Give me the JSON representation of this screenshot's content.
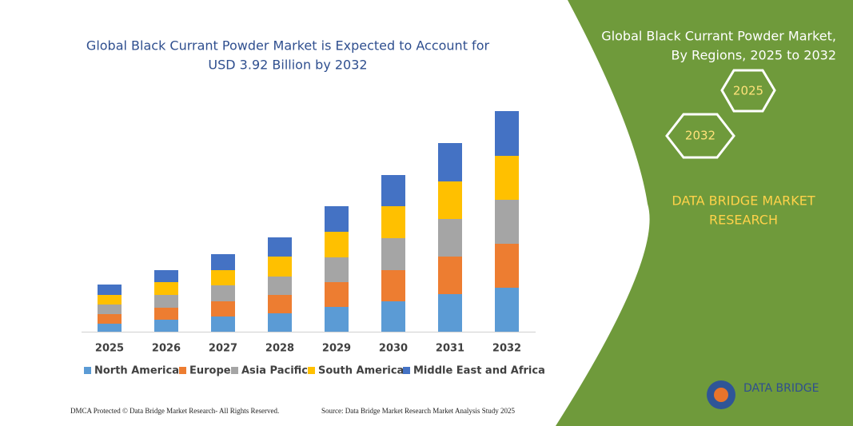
{
  "chart_data": {
    "type": "stacked-bar",
    "title": [
      "Global Black Currant Powder Market is Expected to Account for",
      "USD 3.92 Billion by 2032"
    ],
    "categories": [
      "2025",
      "2026",
      "2027",
      "2028",
      "2029",
      "2030",
      "2031",
      "2032"
    ],
    "series": [
      {
        "name": "North America",
        "color": "#5b9bd5",
        "values": [
          10,
          15,
          19,
          23,
          31,
          38,
          47,
          55
        ]
      },
      {
        "name": "Europe",
        "color": "#ed7d31",
        "values": [
          12,
          15,
          19,
          23,
          31,
          39,
          47,
          55
        ]
      },
      {
        "name": "Asia Pacific",
        "color": "#a5a5a5",
        "values": [
          12,
          16,
          20,
          23,
          31,
          40,
          47,
          55
        ]
      },
      {
        "name": "South America",
        "color": "#ffc000",
        "values": [
          12,
          16,
          19,
          25,
          32,
          40,
          47,
          55
        ]
      },
      {
        "name": "Middle East and Africa",
        "color": "#4472c4",
        "values": [
          13,
          15,
          20,
          24,
          32,
          39,
          48,
          56
        ]
      }
    ]
  },
  "panel": {
    "title": [
      "Global Black Currant Powder Market,",
      "By Regions, 2025 to 2032"
    ],
    "hexagons": [
      "2025",
      "2032"
    ],
    "brand": [
      "DATA BRIDGE MARKET",
      "RESEARCH"
    ]
  },
  "footer": {
    "left": "DMCA Protected © Data Bridge Market Research- All Rights Reserved.",
    "right": "Source: Data Bridge Market Research Market Analysis Study 2025"
  },
  "logo": "DATA BRIDGE"
}
